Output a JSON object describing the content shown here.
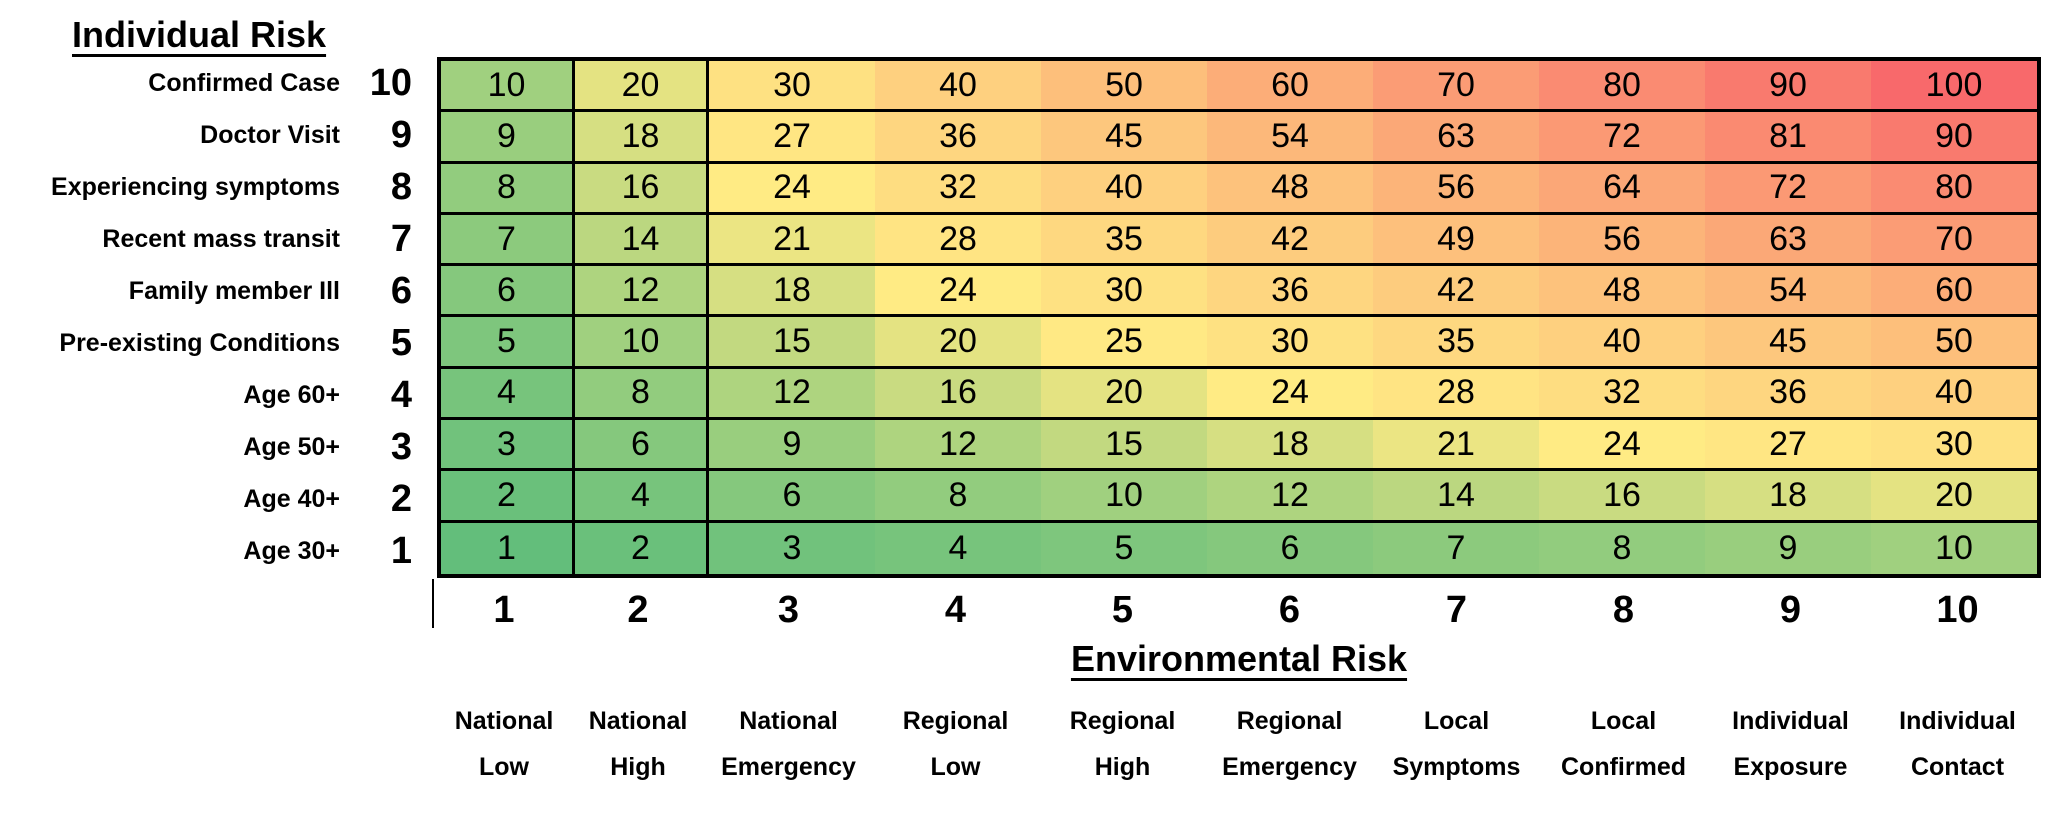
{
  "individual_axis": {
    "title": "Individual Risk",
    "rows": [
      {
        "label": "Confirmed Case",
        "level": 10
      },
      {
        "label": "Doctor Visit",
        "level": 9
      },
      {
        "label": "Experiencing symptoms",
        "level": 8
      },
      {
        "label": "Recent mass transit",
        "level": 7
      },
      {
        "label": "Family member Ill",
        "level": 6
      },
      {
        "label": "Pre-existing Conditions",
        "level": 5
      },
      {
        "label": "Age 60+",
        "level": 4
      },
      {
        "label": "Age 50+",
        "level": 3
      },
      {
        "label": "Age 40+",
        "level": 2
      },
      {
        "label": "Age 30+",
        "level": 1
      }
    ]
  },
  "environmental_axis": {
    "title": "Environmental Risk",
    "levels": [
      1,
      2,
      3,
      4,
      5,
      6,
      7,
      8,
      9,
      10
    ],
    "categories": [
      {
        "line1": "National",
        "line2": "Low"
      },
      {
        "line1": "National",
        "line2": "High"
      },
      {
        "line1": "National",
        "line2": "Emergency"
      },
      {
        "line1": "Regional",
        "line2": "Low"
      },
      {
        "line1": "Regional",
        "line2": "High"
      },
      {
        "line1": "Regional",
        "line2": "Emergency"
      },
      {
        "line1": "Local",
        "line2": "Symptoms"
      },
      {
        "line1": "Local",
        "line2": "Confirmed"
      },
      {
        "line1": "Individual",
        "line2": "Exposure"
      },
      {
        "line1": "Individual",
        "line2": "Contact"
      }
    ]
  },
  "chart_data": {
    "type": "heatmap",
    "title": "",
    "xlabel": "Environmental Risk",
    "ylabel": "Individual Risk",
    "x_levels": [
      1,
      2,
      3,
      4,
      5,
      6,
      7,
      8,
      9,
      10
    ],
    "x_categories": [
      "National Low",
      "National High",
      "National Emergency",
      "Regional Low",
      "Regional High",
      "Regional Emergency",
      "Local Symptoms",
      "Local Confirmed",
      "Individual Exposure",
      "Individual Contact"
    ],
    "y_levels": [
      10,
      9,
      8,
      7,
      6,
      5,
      4,
      3,
      2,
      1
    ],
    "y_categories": [
      "Confirmed Case",
      "Doctor Visit",
      "Experiencing symptoms",
      "Recent mass transit",
      "Family member Ill",
      "Pre-existing Conditions",
      "Age 60+",
      "Age 50+",
      "Age 40+",
      "Age 30+"
    ],
    "values": [
      [
        10,
        20,
        30,
        40,
        50,
        60,
        70,
        80,
        90,
        100
      ],
      [
        9,
        18,
        27,
        36,
        45,
        54,
        63,
        72,
        81,
        90
      ],
      [
        8,
        16,
        24,
        32,
        40,
        48,
        56,
        64,
        72,
        80
      ],
      [
        7,
        14,
        21,
        28,
        35,
        42,
        49,
        56,
        63,
        70
      ],
      [
        6,
        12,
        18,
        24,
        30,
        36,
        42,
        48,
        54,
        60
      ],
      [
        5,
        10,
        15,
        20,
        25,
        30,
        35,
        40,
        45,
        50
      ],
      [
        4,
        8,
        12,
        16,
        20,
        24,
        28,
        32,
        36,
        40
      ],
      [
        3,
        6,
        9,
        12,
        15,
        18,
        21,
        24,
        27,
        30
      ],
      [
        2,
        4,
        6,
        8,
        10,
        12,
        14,
        16,
        18,
        20
      ],
      [
        1,
        2,
        3,
        4,
        5,
        6,
        7,
        8,
        9,
        10
      ]
    ],
    "value_range": [
      1,
      100
    ],
    "grid": "horizontal lines all rows; vertical lines after columns 1 and 2 only",
    "legend": "none",
    "color_scale": {
      "type": "3-color",
      "min_value": 1,
      "min_color": "#63BE7B",
      "mid_value": 24,
      "mid_color": "#FFEB84",
      "max_value": 100,
      "max_color": "#F8696B"
    },
    "cell_text_color": "#000000",
    "border_color": "#000000"
  }
}
